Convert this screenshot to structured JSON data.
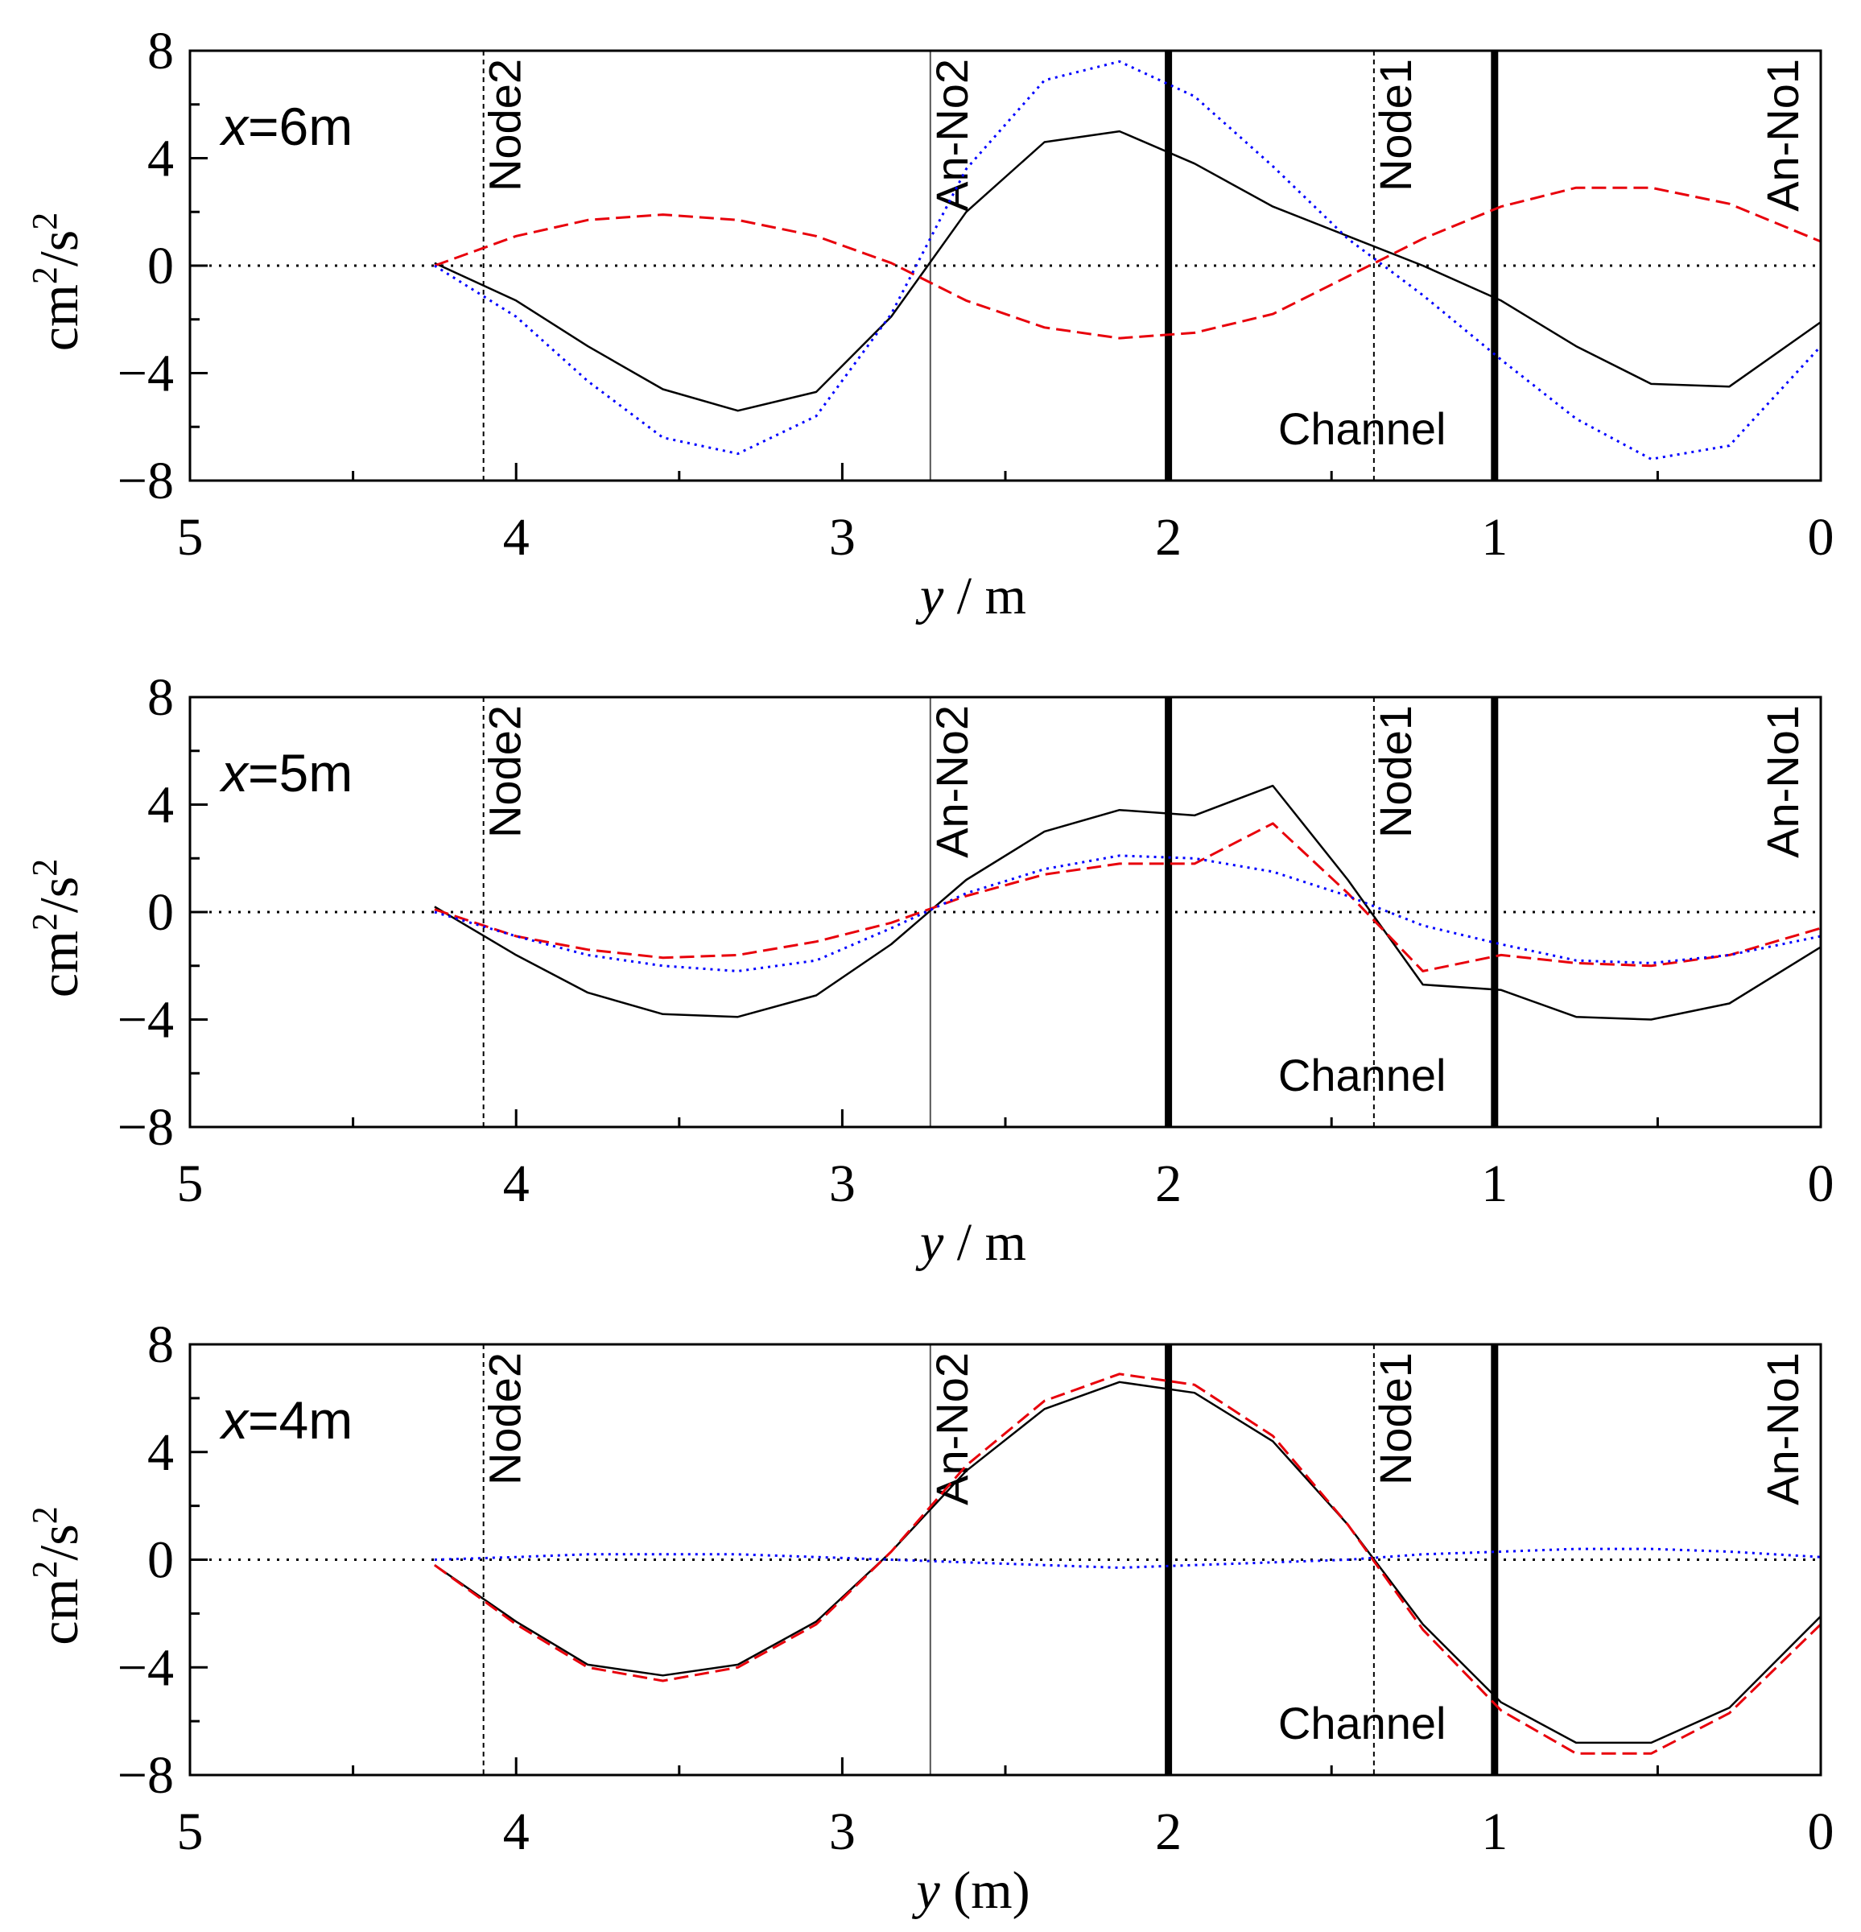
{
  "chart_data": [
    {
      "type": "line",
      "panel_label_var": "x",
      "panel_label_rest": "=6m",
      "ylabel_base": "cm",
      "ylabel_sup1": "2",
      "ylabel_mid": "/s",
      "ylabel_sup2": "2",
      "xlabel_var": "y",
      "xlabel_rest": " / m",
      "xlim": [
        5,
        0
      ],
      "ylim": [
        -8,
        8
      ],
      "x_ticks": [
        5,
        4,
        3,
        2,
        1,
        0
      ],
      "x_tick_labels": [
        "5",
        "4",
        "3",
        "2",
        "1",
        "0"
      ],
      "y_ticks": [
        -8,
        -4,
        0,
        4,
        8
      ],
      "y_tick_labels": [
        "−8",
        "−4",
        "0",
        "4",
        "8"
      ],
      "vlines": [
        {
          "x": 4.1,
          "label": "Node2",
          "style": "dashed"
        },
        {
          "x": 2.73,
          "label": "An-No2",
          "style": "thin"
        },
        {
          "x": 2.0,
          "label": "",
          "style": "thick"
        },
        {
          "x": 1.37,
          "label": "Node1",
          "style": "dashed"
        },
        {
          "x": 1.0,
          "label": "",
          "style": "thick"
        },
        {
          "x": 0.0,
          "label": "An-No1",
          "style": "none"
        }
      ],
      "channel_label": "Channel",
      "x": [
        4.25,
        4.0,
        3.78,
        3.55,
        3.32,
        3.08,
        2.85,
        2.62,
        2.38,
        2.15,
        1.92,
        1.68,
        1.45,
        1.22,
        0.98,
        0.75,
        0.52,
        0.28,
        0.0
      ],
      "series": [
        {
          "name": "solid",
          "color": "#000000",
          "dash": "solid",
          "values": [
            0.1,
            -1.3,
            -3.0,
            -4.6,
            -5.4,
            -4.7,
            -1.9,
            2.0,
            4.6,
            5.0,
            3.8,
            2.2,
            1.1,
            0.0,
            -1.3,
            -3.0,
            -4.4,
            -4.5,
            -2.1
          ]
        },
        {
          "name": "dashed",
          "color": "#e8000b",
          "dash": "dashed",
          "values": [
            0.0,
            1.1,
            1.7,
            1.9,
            1.7,
            1.1,
            0.1,
            -1.3,
            -2.3,
            -2.7,
            -2.5,
            -1.8,
            -0.4,
            1.0,
            2.2,
            2.9,
            2.9,
            2.3,
            0.9
          ]
        },
        {
          "name": "dotted",
          "color": "#0000ff",
          "dash": "dotted",
          "values": [
            0.0,
            -1.9,
            -4.3,
            -6.4,
            -7.0,
            -5.6,
            -1.8,
            3.6,
            6.9,
            7.6,
            6.3,
            3.7,
            1.0,
            -1.1,
            -3.5,
            -5.7,
            -7.2,
            -6.7,
            -3.0
          ]
        }
      ]
    },
    {
      "type": "line",
      "panel_label_var": "x",
      "panel_label_rest": "=5m",
      "ylabel_base": "cm",
      "ylabel_sup1": "2",
      "ylabel_mid": "/s",
      "ylabel_sup2": "2",
      "xlabel_var": "y",
      "xlabel_rest": " / m",
      "xlim": [
        5,
        0
      ],
      "ylim": [
        -8,
        8
      ],
      "x_ticks": [
        5,
        4,
        3,
        2,
        1,
        0
      ],
      "x_tick_labels": [
        "5",
        "4",
        "3",
        "2",
        "1",
        "0"
      ],
      "y_ticks": [
        -8,
        -4,
        0,
        4,
        8
      ],
      "y_tick_labels": [
        "−8",
        "−4",
        "0",
        "4",
        "8"
      ],
      "vlines": [
        {
          "x": 4.1,
          "label": "Node2",
          "style": "dashed"
        },
        {
          "x": 2.73,
          "label": "An-No2",
          "style": "thin"
        },
        {
          "x": 2.0,
          "label": "",
          "style": "thick"
        },
        {
          "x": 1.37,
          "label": "Node1",
          "style": "dashed"
        },
        {
          "x": 1.0,
          "label": "",
          "style": "thick"
        },
        {
          "x": 0.0,
          "label": "An-No1",
          "style": "none"
        }
      ],
      "channel_label": "Channel",
      "x": [
        4.25,
        4.0,
        3.78,
        3.55,
        3.32,
        3.08,
        2.85,
        2.62,
        2.38,
        2.15,
        1.92,
        1.68,
        1.45,
        1.22,
        0.98,
        0.75,
        0.52,
        0.28,
        0.0
      ],
      "series": [
        {
          "name": "solid",
          "color": "#000000",
          "dash": "solid",
          "values": [
            0.2,
            -1.6,
            -3.0,
            -3.8,
            -3.9,
            -3.1,
            -1.2,
            1.2,
            3.0,
            3.8,
            3.6,
            4.7,
            1.2,
            -2.7,
            -2.9,
            -3.9,
            -4.0,
            -3.4,
            -1.3
          ]
        },
        {
          "name": "dashed",
          "color": "#e8000b",
          "dash": "dashed",
          "values": [
            0.1,
            -0.9,
            -1.4,
            -1.7,
            -1.6,
            -1.1,
            -0.4,
            0.6,
            1.4,
            1.8,
            1.8,
            3.3,
            0.7,
            -2.2,
            -1.6,
            -1.9,
            -2.0,
            -1.6,
            -0.6
          ]
        },
        {
          "name": "dotted",
          "color": "#0000ff",
          "dash": "dotted",
          "values": [
            0.0,
            -0.9,
            -1.6,
            -2.0,
            -2.2,
            -1.8,
            -0.6,
            0.7,
            1.6,
            2.1,
            2.0,
            1.5,
            0.6,
            -0.5,
            -1.2,
            -1.8,
            -1.9,
            -1.6,
            -0.9
          ]
        }
      ]
    },
    {
      "type": "line",
      "panel_label_var": "x",
      "panel_label_rest": "=4m",
      "ylabel_base": "cm",
      "ylabel_sup1": "2",
      "ylabel_mid": "/s",
      "ylabel_sup2": "2",
      "xlabel_var": "y",
      "xlabel_rest": " (m)",
      "xlim": [
        5,
        0
      ],
      "ylim": [
        -8,
        8
      ],
      "x_ticks": [
        5,
        4,
        3,
        2,
        1,
        0
      ],
      "x_tick_labels": [
        "5",
        "4",
        "3",
        "2",
        "1",
        "0"
      ],
      "y_ticks": [
        -8,
        -4,
        0,
        4,
        8
      ],
      "y_tick_labels": [
        "−8",
        "−4",
        "0",
        "4",
        "8"
      ],
      "vlines": [
        {
          "x": 4.1,
          "label": "Node2",
          "style": "dashed"
        },
        {
          "x": 2.73,
          "label": "An-No2",
          "style": "thin"
        },
        {
          "x": 2.0,
          "label": "",
          "style": "thick"
        },
        {
          "x": 1.37,
          "label": "Node1",
          "style": "dashed"
        },
        {
          "x": 1.0,
          "label": "",
          "style": "thick"
        },
        {
          "x": 0.0,
          "label": "An-No1",
          "style": "none"
        }
      ],
      "channel_label": "Channel",
      "x": [
        4.25,
        4.0,
        3.78,
        3.55,
        3.32,
        3.08,
        2.85,
        2.62,
        2.38,
        2.15,
        1.92,
        1.68,
        1.45,
        1.22,
        0.98,
        0.75,
        0.52,
        0.28,
        0.0
      ],
      "series": [
        {
          "name": "solid",
          "color": "#000000",
          "dash": "solid",
          "values": [
            -0.2,
            -2.3,
            -3.9,
            -4.3,
            -3.9,
            -2.3,
            0.3,
            3.3,
            5.6,
            6.6,
            6.2,
            4.4,
            1.3,
            -2.4,
            -5.3,
            -6.8,
            -6.8,
            -5.5,
            -2.1
          ]
        },
        {
          "name": "dashed",
          "color": "#e8000b",
          "dash": "dashed",
          "values": [
            -0.2,
            -2.4,
            -4.0,
            -4.5,
            -4.0,
            -2.4,
            0.3,
            3.5,
            5.9,
            6.9,
            6.5,
            4.6,
            1.3,
            -2.6,
            -5.6,
            -7.2,
            -7.2,
            -5.7,
            -2.4
          ]
        },
        {
          "name": "dotted",
          "color": "#0000ff",
          "dash": "dotted",
          "values": [
            0.0,
            0.1,
            0.2,
            0.2,
            0.2,
            0.1,
            0.0,
            -0.1,
            -0.2,
            -0.3,
            -0.2,
            -0.1,
            0.0,
            0.2,
            0.3,
            0.4,
            0.4,
            0.3,
            0.1
          ]
        }
      ]
    }
  ]
}
